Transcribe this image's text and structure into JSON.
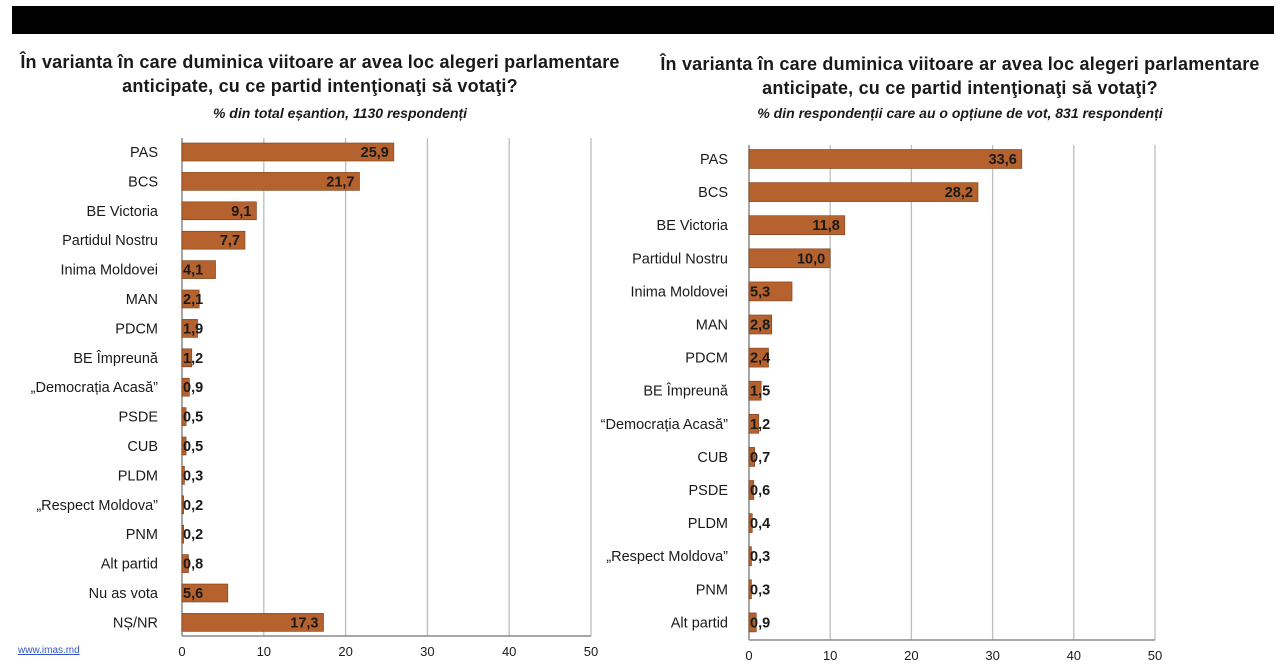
{
  "source_link": "www.imas.md",
  "colors": {
    "bar": "#b5622e",
    "bar_stroke": "#7a3e16",
    "grid": "#bdbdbd",
    "axis": "#8a8a8a",
    "text": "#1a1a1a"
  },
  "chart_data": [
    {
      "type": "bar",
      "orientation": "horizontal",
      "title": "În varianta în care duminica viitoare ar avea loc alegeri parlamentare anticipate, cu ce partid intenţionaţi să votaţi?",
      "subtitle": "% din total eșantion, 1130 respondenți",
      "xlim": [
        0,
        50
      ],
      "xticks": [
        0,
        10,
        20,
        30,
        40,
        50
      ],
      "grid": true,
      "categories": [
        "PAS",
        "BCS",
        "BE Victoria",
        "Partidul Nostru",
        "Inima Moldovei",
        "MAN",
        "PDCM",
        "BE Împreună",
        "„Democrația Acasă”",
        "PSDE",
        "CUB",
        "PLDM",
        "„Respect Moldova”",
        "PNM",
        "Alt partid",
        "Nu as vota",
        "NȘ/NR"
      ],
      "values": [
        25.9,
        21.7,
        9.1,
        7.7,
        4.1,
        2.1,
        1.9,
        1.2,
        0.9,
        0.5,
        0.5,
        0.3,
        0.2,
        0.2,
        0.8,
        5.6,
        17.3
      ],
      "labels": [
        "25,9",
        "21,7",
        "9,1",
        "7,7",
        "4,1",
        "2,1",
        "1,9",
        "1,2",
        "0,9",
        "0,5",
        "0,5",
        "0,3",
        "0,2",
        "0,2",
        "0,8",
        "5,6",
        "17,3"
      ]
    },
    {
      "type": "bar",
      "orientation": "horizontal",
      "title": "În varianta în care duminica viitoare ar avea loc alegeri parlamentare anticipate, cu ce partid intenţionaţi să votaţi?",
      "subtitle": "% din respondenții care au o opțiune de vot, 831 respondenți",
      "xlim": [
        0,
        50
      ],
      "xticks": [
        0,
        10,
        20,
        30,
        40,
        50
      ],
      "grid": true,
      "categories": [
        "PAS",
        "BCS",
        "BE Victoria",
        "Partidul Nostru",
        "Inima Moldovei",
        "MAN",
        "PDCM",
        "BE Împreună",
        "“Democrația Acasă”",
        "CUB",
        "PSDE",
        "PLDM",
        "„Respect Moldova”",
        "PNM",
        "Alt partid"
      ],
      "values": [
        33.6,
        28.2,
        11.8,
        10.0,
        5.3,
        2.8,
        2.4,
        1.5,
        1.2,
        0.7,
        0.6,
        0.4,
        0.3,
        0.3,
        0.9
      ],
      "labels": [
        "33,6",
        "28,2",
        "11,8",
        "10,0",
        "5,3",
        "2,8",
        "2,4",
        "1,5",
        "1,2",
        "0,7",
        "0,6",
        "0,4",
        "0,3",
        "0,3",
        "0,9"
      ]
    }
  ]
}
